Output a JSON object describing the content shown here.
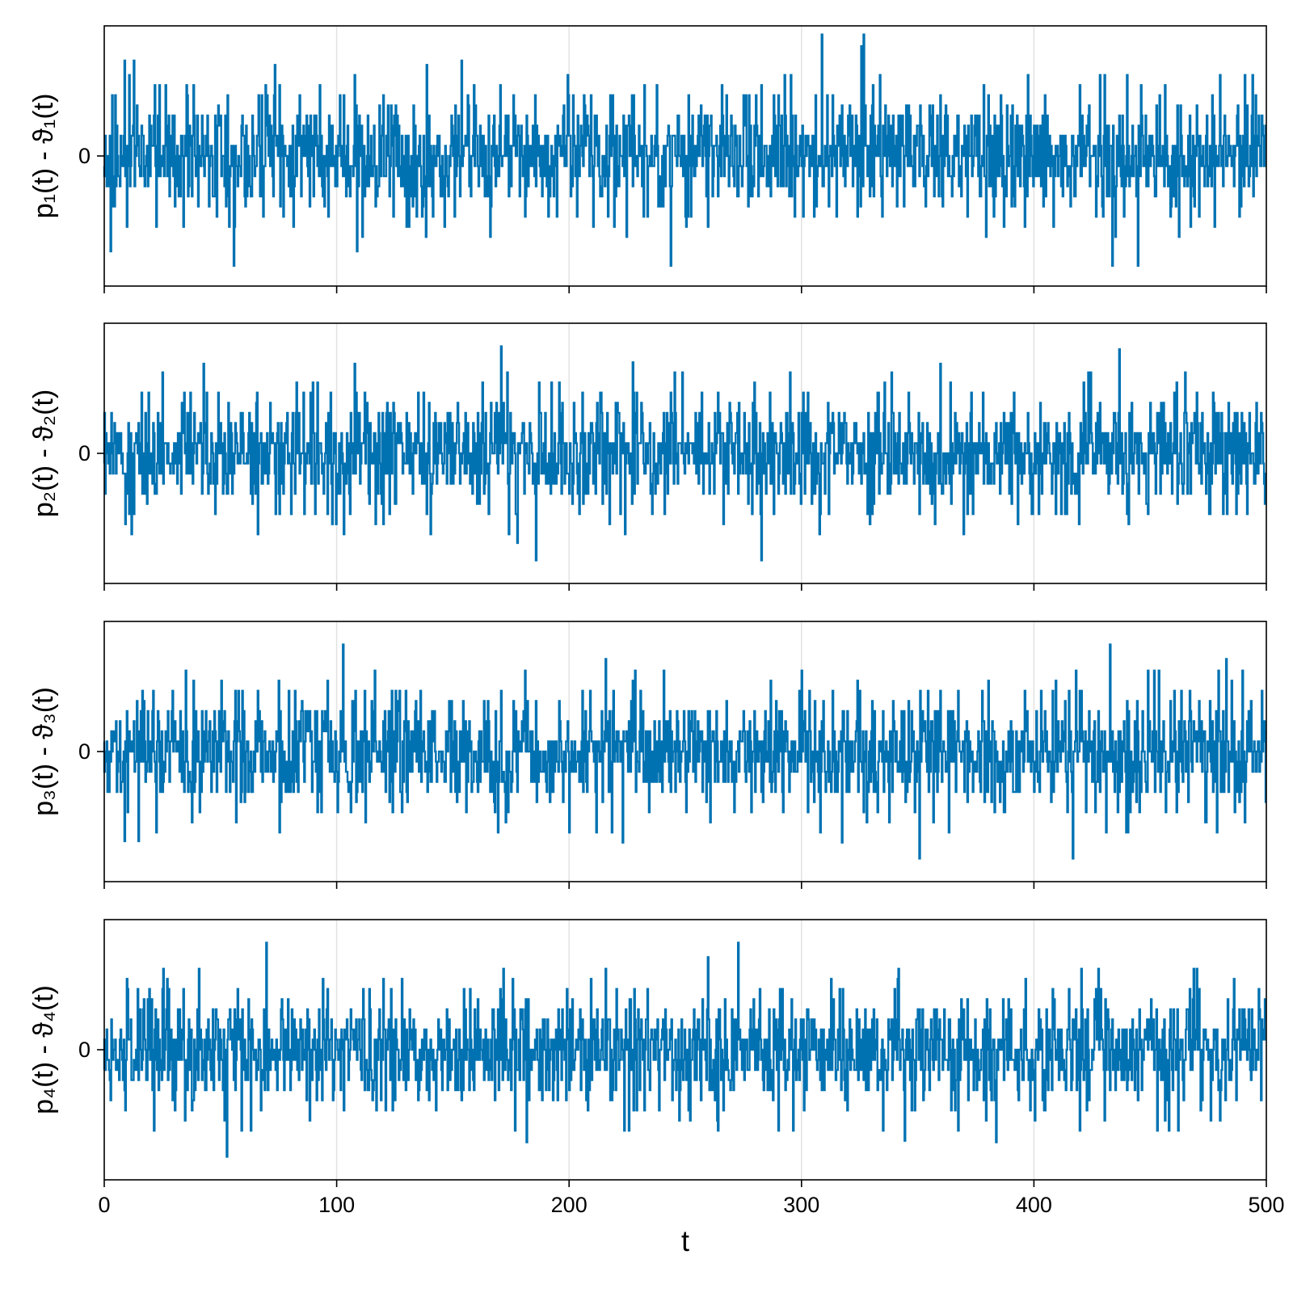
{
  "chart_data": [
    {
      "type": "line",
      "ylabel": "p₁(t) - ϑ₁(t)",
      "yticks": [
        0
      ],
      "xlim": [
        0,
        500
      ],
      "grid": {
        "x": true,
        "y": false
      },
      "color": "#0072b2",
      "seed": 11,
      "spikes": [
        {
          "t": 309,
          "v": 4.2
        },
        {
          "t": 327,
          "v": 4.2
        },
        {
          "t": 326,
          "v": 3.8
        },
        {
          "t": 56,
          "v": -3.8
        },
        {
          "t": 244,
          "v": -3.8
        },
        {
          "t": 434,
          "v": -3.8
        },
        {
          "t": 445,
          "v": -3.8
        },
        {
          "t": 3,
          "v": -3.3
        },
        {
          "t": 109,
          "v": -3.3
        },
        {
          "t": 13,
          "v": 3.3
        },
        {
          "t": 9,
          "v": 3.3
        },
        {
          "t": 154,
          "v": 3.3
        }
      ]
    },
    {
      "type": "line",
      "ylabel": "p₂(t) - ϑ₂(t)",
      "yticks": [
        0
      ],
      "xlim": [
        0,
        500
      ],
      "grid": {
        "x": true,
        "y": false
      },
      "color": "#0072b2",
      "seed": 23,
      "spikes": [
        {
          "t": 171,
          "v": 3.7
        },
        {
          "t": 437,
          "v": 3.6
        },
        {
          "t": 186,
          "v": -3.7
        },
        {
          "t": 283,
          "v": -3.7
        },
        {
          "t": 178,
          "v": -3.1
        },
        {
          "t": 43,
          "v": 3.1
        },
        {
          "t": 108,
          "v": 3.1
        },
        {
          "t": 360,
          "v": 3.1
        }
      ]
    },
    {
      "type": "line",
      "ylabel": "p₃(t) - ϑ₃(t)",
      "yticks": [
        0
      ],
      "xlim": [
        0,
        500
      ],
      "grid": {
        "x": true,
        "y": false
      },
      "color": "#0072b2",
      "seed": 37,
      "spikes": [
        {
          "t": 103,
          "v": 3.7
        },
        {
          "t": 433,
          "v": 3.7
        },
        {
          "t": 351,
          "v": -3.7
        },
        {
          "t": 417,
          "v": -3.7
        },
        {
          "t": 9,
          "v": -3.1
        },
        {
          "t": 15,
          "v": -3.1
        },
        {
          "t": 216,
          "v": 3.2
        },
        {
          "t": 483,
          "v": 3.2
        }
      ]
    },
    {
      "type": "line",
      "ylabel": "p₄(t) - ϑ₄(t)",
      "yticks": [
        0
      ],
      "xlabel": "t",
      "xticks": [
        0,
        100,
        200,
        300,
        400,
        500
      ],
      "xlim": [
        0,
        500
      ],
      "grid": {
        "x": true,
        "y": false
      },
      "color": "#0072b2",
      "seed": 53,
      "spikes": [
        {
          "t": 70,
          "v": 3.7
        },
        {
          "t": 273,
          "v": 3.7
        },
        {
          "t": 53,
          "v": -3.7
        },
        {
          "t": 182,
          "v": -3.2
        },
        {
          "t": 384,
          "v": -3.2
        },
        {
          "t": 260,
          "v": 3.2
        },
        {
          "t": 41,
          "v": 2.8
        },
        {
          "t": 469,
          "v": 2.8
        }
      ]
    }
  ]
}
